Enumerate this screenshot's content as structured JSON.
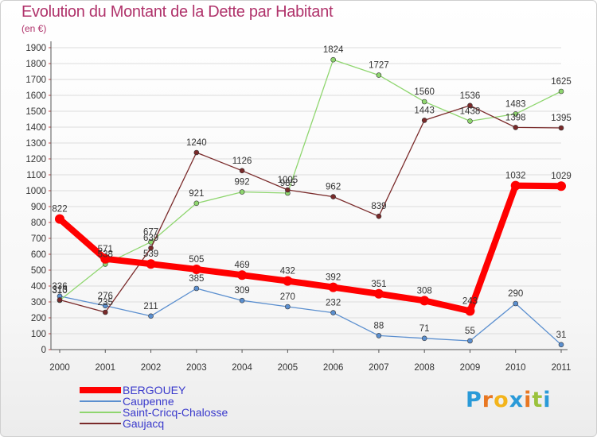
{
  "chart_data": {
    "type": "line",
    "title": "Evolution du Montant de la Dette par Habitant",
    "subtitle": "(en €)",
    "categories": [
      "2000",
      "2001",
      "2002",
      "2003",
      "2004",
      "2005",
      "2006",
      "2007",
      "2008",
      "2009",
      "2010",
      "2011"
    ],
    "yticks": [
      "0",
      "100",
      "200",
      "300",
      "400",
      "500",
      "600",
      "700",
      "800",
      "900",
      "1000",
      "1100",
      "1200",
      "1300",
      "1400",
      "1500",
      "1600",
      "1700",
      "1800",
      "1900"
    ],
    "ylim": [
      0,
      1900
    ],
    "series": [
      {
        "name": "Caupenne",
        "color": "#5b8fcf",
        "values": [
          336,
          276,
          211,
          385,
          309,
          270,
          232,
          88,
          71,
          55,
          290,
          31
        ]
      },
      {
        "name": "Saint-Cricq-Chalosse",
        "color": "#8fd66f",
        "values": [
          310,
          538,
          677,
          921,
          992,
          985,
          1824,
          1727,
          1560,
          1438,
          1483,
          1625
        ]
      },
      {
        "name": "Gaujacq",
        "color": "#7a2a2a",
        "values": [
          313,
          235,
          639,
          1240,
          1126,
          1005,
          962,
          839,
          1443,
          1536,
          1398,
          1395
        ]
      },
      {
        "name": "BERGOUEY",
        "color": "#ff0000",
        "values": [
          822,
          571,
          539,
          505,
          469,
          432,
          392,
          351,
          308,
          243,
          1032,
          1029
        ]
      }
    ]
  },
  "legend": {
    "items": [
      {
        "label": "BERGOUEY",
        "color": "#ff0000"
      },
      {
        "label": "Caupenne",
        "color": "#5b8fcf"
      },
      {
        "label": "Saint-Cricq-Chalosse",
        "color": "#8fd66f"
      },
      {
        "label": "Gaujacq",
        "color": "#7a2a2a"
      }
    ]
  },
  "logo": {
    "letters": [
      "P",
      "r",
      "o",
      "x",
      "i",
      "t",
      "i"
    ],
    "colors": [
      "#2a9ad8",
      "#e87722",
      "#f3b41b",
      "#2a9ad8",
      "#e87722",
      "#9ac23c",
      "#2a9ad8"
    ]
  }
}
